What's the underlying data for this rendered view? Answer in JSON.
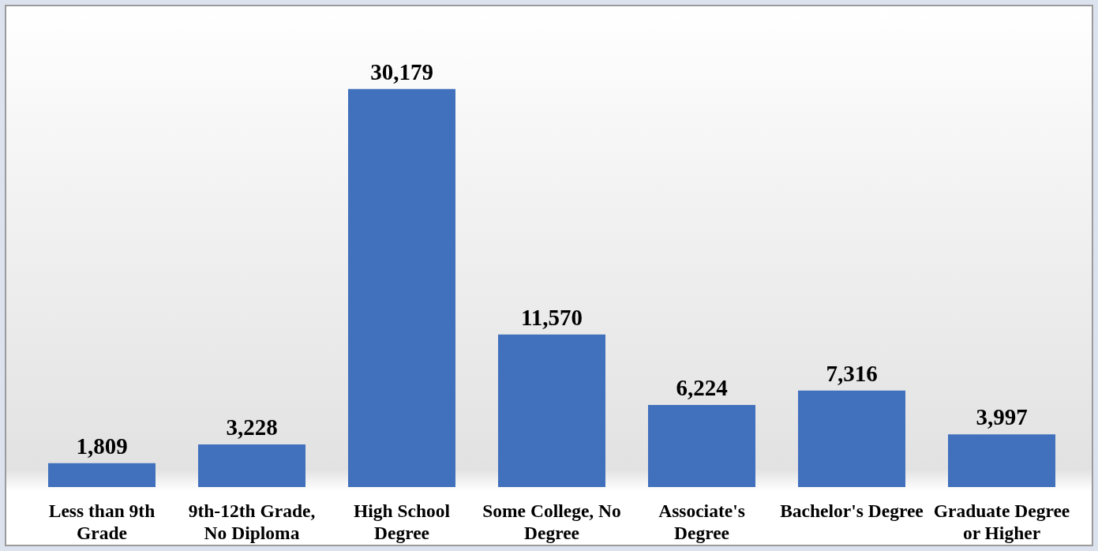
{
  "chart_data": {
    "type": "bar",
    "categories": [
      "Less than 9th Grade",
      "9th-12th Grade, No Diploma",
      "High School Degree",
      "Some College, No Degree",
      "Associate's Degree",
      "Bachelor's Degree",
      "Graduate Degree or Higher"
    ],
    "values": [
      1809,
      3228,
      30179,
      11570,
      6224,
      7316,
      3997
    ],
    "value_labels": [
      "1,809",
      "3,228",
      "30,179",
      "11,570",
      "6,224",
      "7,316",
      "3,997"
    ],
    "color": "#4170bc"
  }
}
